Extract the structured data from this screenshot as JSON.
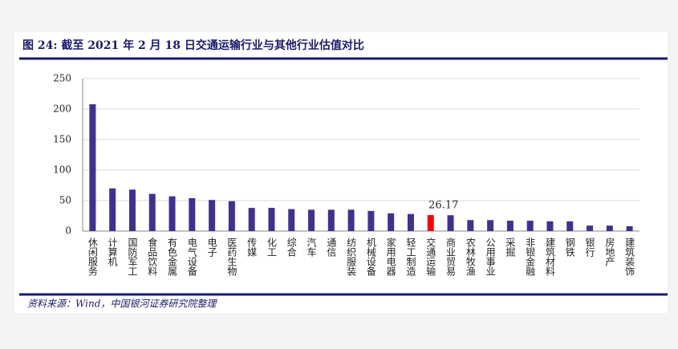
{
  "chart_data": {
    "type": "bar",
    "title": "图 24: 截至 2021 年 2 月 18 日交通运输行业与其他行业估值对比",
    "source": "资料来源：Wind，中国银河证券研究院整理",
    "categories": [
      "休闲服务",
      "计算机",
      "国防军工",
      "食品饮料",
      "有色金属",
      "电气设备",
      "电子",
      "医药生物",
      "传媒",
      "化工",
      "综合",
      "汽车",
      "通信",
      "纺织服装",
      "机械设备",
      "家用电器",
      "轻工制造",
      "交通运输",
      "商业贸易",
      "农林牧渔",
      "公用事业",
      "采掘",
      "非银金融",
      "建筑材料",
      "钢铁",
      "银行",
      "房地产",
      "建筑装饰"
    ],
    "values": [
      208,
      70,
      68,
      61,
      57,
      54,
      51,
      49,
      38,
      38,
      36,
      35,
      35,
      35,
      33,
      29,
      28,
      26.17,
      26,
      18,
      18,
      17,
      17,
      16,
      16,
      9,
      9,
      8
    ],
    "value_labels": [
      null,
      null,
      null,
      null,
      null,
      null,
      null,
      null,
      null,
      null,
      null,
      null,
      null,
      null,
      null,
      null,
      null,
      "26.17",
      null,
      null,
      null,
      null,
      null,
      null,
      null,
      null,
      null,
      null
    ],
    "colors": [
      "#3f3192",
      "#3f3192",
      "#3f3192",
      "#3f3192",
      "#3f3192",
      "#3f3192",
      "#3f3192",
      "#3f3192",
      "#3f3192",
      "#3f3192",
      "#3f3192",
      "#3f3192",
      "#3f3192",
      "#3f3192",
      "#3f3192",
      "#3f3192",
      "#3f3192",
      "#ff0000",
      "#3f3192",
      "#3f3192",
      "#3f3192",
      "#3f3192",
      "#3f3192",
      "#3f3192",
      "#3f3192",
      "#3f3192",
      "#3f3192",
      "#3f3192"
    ],
    "ylim": [
      0,
      250
    ],
    "yticks": [
      0,
      50,
      100,
      150,
      200,
      250
    ],
    "grid": true
  }
}
